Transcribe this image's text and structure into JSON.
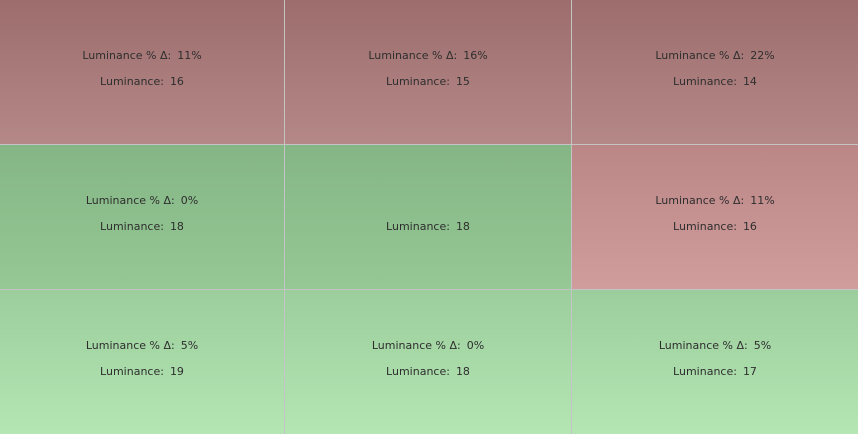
{
  "cells": [
    {
      "delta": {
        "label": "Luminance % Δ:",
        "value": "11%"
      },
      "luminance": {
        "label": "Luminance:",
        "value": "16"
      }
    },
    {
      "delta": {
        "label": "Luminance % Δ:",
        "value": "16%"
      },
      "luminance": {
        "label": "Luminance:",
        "value": "15"
      }
    },
    {
      "delta": {
        "label": "Luminance % Δ:",
        "value": "22%"
      },
      "luminance": {
        "label": "Luminance:",
        "value": "14"
      }
    },
    {
      "delta": {
        "label": "Luminance % Δ:",
        "value": "0%"
      },
      "luminance": {
        "label": "Luminance:",
        "value": "18"
      }
    },
    {
      "luminance": {
        "label": "Luminance:",
        "value": "18"
      }
    },
    {
      "delta": {
        "label": "Luminance % Δ:",
        "value": "11%"
      },
      "luminance": {
        "label": "Luminance:",
        "value": "16"
      }
    },
    {
      "delta": {
        "label": "Luminance % Δ:",
        "value": "5%"
      },
      "luminance": {
        "label": "Luminance:",
        "value": "19"
      }
    },
    {
      "delta": {
        "label": "Luminance % Δ:",
        "value": "0%"
      },
      "luminance": {
        "label": "Luminance:",
        "value": "18"
      }
    },
    {
      "delta": {
        "label": "Luminance % Δ:",
        "value": "5%"
      },
      "luminance": {
        "label": "Luminance:",
        "value": "17"
      }
    }
  ]
}
